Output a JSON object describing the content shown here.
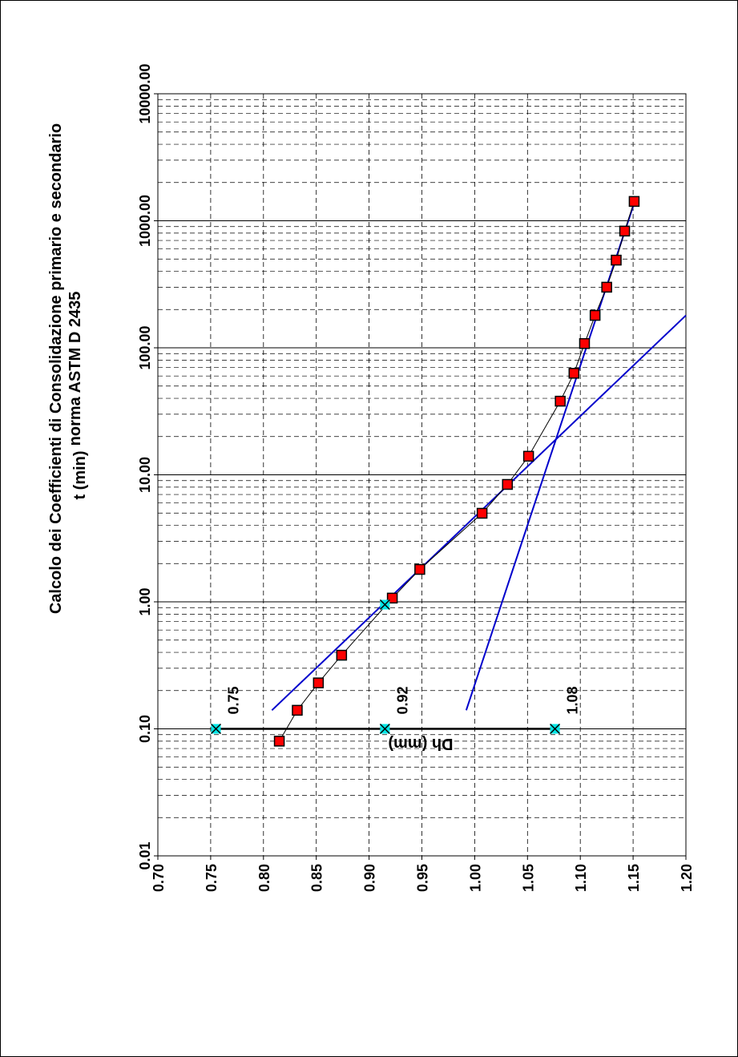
{
  "chart_data": {
    "type": "scatter",
    "title": "Calcolo dei Coefficienti di Consolidazione  primario e secondario",
    "subtitle": "norma ASTM D 2435",
    "xlabel": "Dh (mm)",
    "ylabel": "t (min)",
    "xlim": [
      0.7,
      1.2
    ],
    "ylim": [
      0.01,
      10000
    ],
    "y_scale": "log",
    "grid": true,
    "orientation": "rotated-90",
    "x_ticks": [
      "0.70",
      "0.75",
      "0.80",
      "0.85",
      "0.90",
      "0.95",
      "1.00",
      "1.05",
      "1.10",
      "1.15",
      "1.20"
    ],
    "y_ticks": [
      "0.01",
      "0.10",
      "1.00",
      "10.00",
      "100.00",
      "1000.00",
      "10000.00"
    ],
    "series": [
      {
        "color": "#ff0000",
        "marker": "square",
        "x": [
          0.815,
          0.832,
          0.852,
          0.874,
          0.922,
          0.948,
          1.007,
          1.031,
          1.051,
          1.081,
          1.094,
          1.104,
          1.114,
          1.125,
          1.134,
          1.142,
          1.151
        ],
        "y": [
          0.08,
          0.14,
          0.23,
          0.38,
          1.07,
          1.8,
          4.98,
          8.4,
          14.0,
          38.0,
          63.0,
          108.0,
          180.0,
          300.0,
          490.0,
          830.0,
          1420.0
        ]
      },
      {
        "color": "#00e5e5",
        "marker": "x",
        "x": [
          0.755,
          0.915,
          1.076
        ],
        "y": [
          0.1,
          0.1,
          0.1
        ]
      },
      {
        "color": "#00e5e5",
        "marker": "x",
        "x": [
          0.915
        ],
        "y": [
          0.95
        ]
      }
    ],
    "fit_lines": [
      {
        "color": "#0000cc",
        "x": [
          0.808,
          1.2
        ],
        "y": [
          0.14,
          180
        ]
      },
      {
        "color": "#0000cc",
        "x": [
          0.992,
          1.15
        ],
        "y": [
          0.14,
          1300
        ]
      }
    ],
    "annotations": [
      {
        "text": "0.75",
        "x": 0.755,
        "y": 0.1
      },
      {
        "text": "0.92",
        "x": 0.915,
        "y": 0.1
      },
      {
        "text": "1.08",
        "x": 1.076,
        "y": 0.1
      }
    ]
  }
}
